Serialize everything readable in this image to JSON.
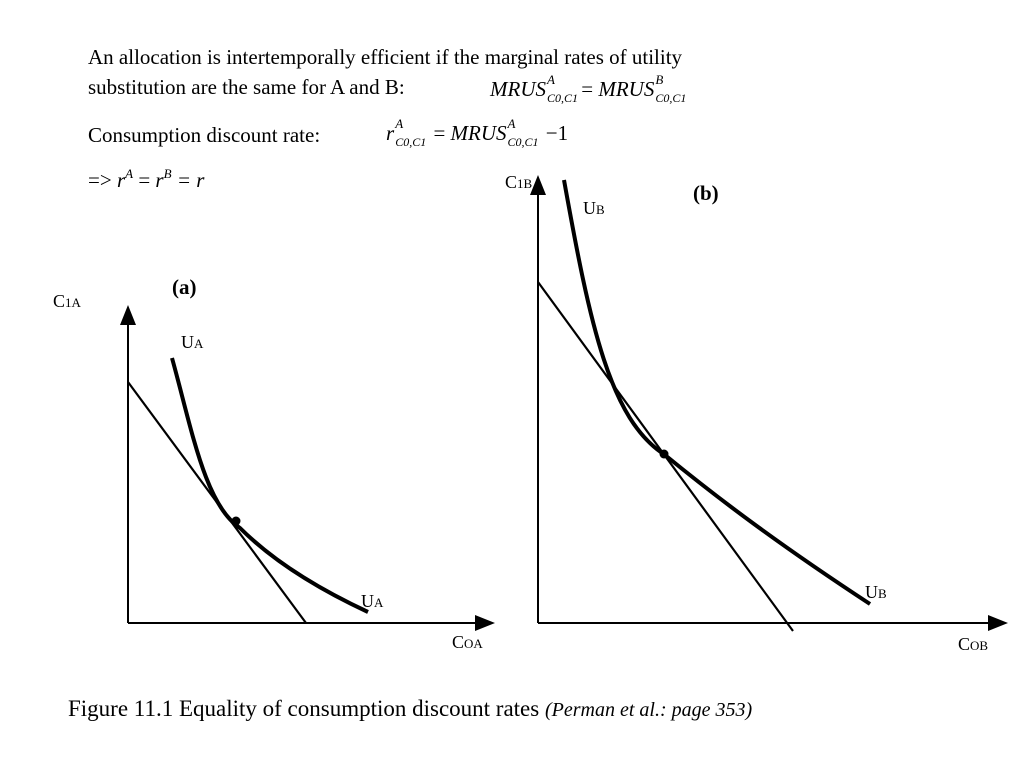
{
  "intro": {
    "line1": "An allocation is intertemporally efficient if the marginal rates of utility",
    "line2": "substitution are the same for A and B:"
  },
  "mrus_eq": {
    "lhs": "MRUS",
    "lhs_sup": "A",
    "lhs_sub": "C0,C1",
    "equals": "=",
    "rhs": "MRUS",
    "rhs_sup": "B",
    "rhs_sub": "C0,C1"
  },
  "discount": {
    "label": "Consumption discount rate:",
    "r": "r",
    "r_sup": "A",
    "r_sub": "C0,C1",
    "equals": "=",
    "mrus": "MRUS",
    "mrus_sup": "A",
    "mrus_sub": "C0,C1",
    "minus_one": "−1"
  },
  "implication": {
    "arrow": "=>",
    "r": "r",
    "sup_a": "A",
    "eq1": "=",
    "sup_b": "B",
    "eq2": "= r"
  },
  "panel_a": {
    "tag": "(a)",
    "y_label_main": "C",
    "y_label_sub": "1A",
    "x_label_main": "C",
    "x_label_sub": "OA",
    "curve_label_top_main": "U",
    "curve_label_top_sub": "A",
    "curve_label_bottom_main": "U",
    "curve_label_bottom_sub": "A"
  },
  "panel_b": {
    "tag": "(b)",
    "y_label_main": "C",
    "y_label_sub": "1B",
    "x_label_main": "C",
    "x_label_sub": "OB",
    "curve_label_top_main": "U",
    "curve_label_top_sub": "B",
    "curve_label_bottom_main": "U",
    "curve_label_bottom_sub": "B"
  },
  "caption": {
    "main": "Figure 11.1 Equality of consumption discount rates",
    "source": "(Perman et al.: page 353)"
  }
}
